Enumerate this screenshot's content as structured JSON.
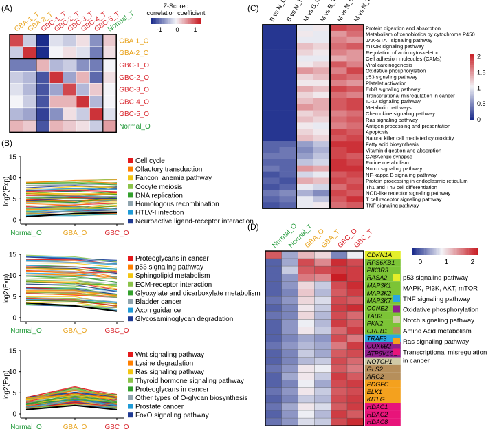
{
  "panels": {
    "A": {
      "label": "(A)",
      "legend_title": [
        "Z-Scored",
        "correlation coefficient"
      ],
      "legend_ticks": [
        "-1",
        "0",
        "1"
      ],
      "columns": [
        "GBA-1_T",
        "GBA-2_T",
        "GBC-1_T",
        "GBC-2_T",
        "GBC-3_T",
        "GBC-4_T",
        "GBC-5_T",
        "Normal_T"
      ],
      "rows": [
        "GBA-1_O",
        "GBA-2_O",
        "GBC-1_O",
        "GBC-2_O",
        "GBC-3_O",
        "GBC-4_O",
        "GBC-5_O",
        "Normal_O"
      ],
      "group_colors": {
        "GBA": "#e8a21a",
        "GBC": "#d9272e",
        "Normal": "#229a3a"
      },
      "matrix": [
        [
          0.8,
          -0.2,
          -1,
          -0.1,
          -0.2,
          0.1,
          -0.5,
          0.2
        ],
        [
          -0.2,
          0.9,
          -1,
          0.0,
          0.1,
          -0.1,
          -0.6,
          0.1
        ],
        [
          -0.6,
          -0.6,
          0.3,
          -0.3,
          -0.2,
          -0.5,
          -0.6,
          0.0
        ],
        [
          -0.2,
          -0.3,
          -0.8,
          0.9,
          -0.4,
          0.3,
          -0.7,
          0.1
        ],
        [
          -0.1,
          -0.3,
          -0.8,
          -0.4,
          0.8,
          -0.3,
          0.2,
          0.0
        ],
        [
          0.0,
          -0.2,
          -0.8,
          0.3,
          0.3,
          0.9,
          -0.3,
          0.0
        ],
        [
          -0.3,
          -0.4,
          -0.9,
          -0.5,
          0.1,
          -0.2,
          0.9,
          -0.1
        ],
        [
          0.3,
          0.2,
          -0.8,
          0.3,
          0.2,
          0.1,
          -0.2,
          0.4
        ]
      ]
    },
    "B": {
      "label": "(B)",
      "xticks": [
        "Normal_O",
        "GBA_O",
        "GBC_O"
      ],
      "xtick_colors": [
        "#229a3a",
        "#e8a21a",
        "#d9272e"
      ],
      "ylabel": "log2(Exp)",
      "subplots": [
        {
          "yticks": [
            "0",
            "5",
            "10",
            "15"
          ],
          "legend": [
            {
              "label": "Cell cycle",
              "color": "#e41a1c"
            },
            {
              "label": "Olfactory transduction",
              "color": "#ff7f00"
            },
            {
              "label": "Fanconi anemia pathway",
              "color": "#f3c613"
            },
            {
              "label": "Oocyte meiosis",
              "color": "#8bc34a"
            },
            {
              "label": "DNA replication",
              "color": "#33a02c"
            },
            {
              "label": "Homologous recombination",
              "color": "#90a4ae"
            },
            {
              "label": "HTLV-I infection",
              "color": "#1f9bd7"
            },
            {
              "label": "Neuroactive ligand-receptor interaction",
              "color": "#1f3a93"
            }
          ]
        },
        {
          "yticks": [
            "0",
            "5",
            "10",
            "15"
          ],
          "legend": [
            {
              "label": "Proteoglycans in cancer",
              "color": "#e41a1c"
            },
            {
              "label": "p53 signaling pathway",
              "color": "#ff7f00"
            },
            {
              "label": "Sphingolipid metabolism",
              "color": "#f3c613"
            },
            {
              "label": "ECM-receptor interaction",
              "color": "#8bc34a"
            },
            {
              "label": "Glyoxylate and dicarboxylate metabolism",
              "color": "#33a02c"
            },
            {
              "label": "Bladder cancer",
              "color": "#90a4ae"
            },
            {
              "label": "Axon guidance",
              "color": "#1f9bd7"
            },
            {
              "label": "Glycosaminoglycan degradation",
              "color": "#1f3a93"
            }
          ]
        },
        {
          "yticks": [
            "0",
            "5",
            "10",
            "15"
          ],
          "legend": [
            {
              "label": "Wnt signaling pathway",
              "color": "#e41a1c"
            },
            {
              "label": "Lysine degradation",
              "color": "#ff7f00"
            },
            {
              "label": "Ras signaling pathway",
              "color": "#f3c613"
            },
            {
              "label": "Thyroid hormone signaling pathway",
              "color": "#8bc34a"
            },
            {
              "label": "Proteoglycans in cancer",
              "color": "#33a02c"
            },
            {
              "label": "Other types of O-glycan biosynthesis",
              "color": "#90a4ae"
            },
            {
              "label": "Prostate cancer",
              "color": "#1f9bd7"
            },
            {
              "label": "FoxO signaling pathway",
              "color": "#1f3a93"
            }
          ]
        }
      ]
    },
    "C": {
      "label": "(C)",
      "columns": [
        "B vs N_O",
        "B vs N_T",
        "M vs B_O",
        "M vs B_T",
        "M vs N_O",
        "M vs N_T"
      ],
      "rows": [
        "Protein digestion and absorption",
        "Metabolism of xenobiotics by cytochrome P450",
        "JAK-STAT signaling pathway",
        "mTOR signaling pathway",
        "Regulation of actin cytoskeleton",
        "Cell adhesion molecules (CAMs)",
        "Viral carcinogenesis",
        "Oxidative phosphorylation",
        "p53 signaling pathway",
        "Platelet activation",
        "ErbB signaling pathway",
        "Transcriptional misregulation in cancer",
        "IL-17 signaling pathway",
        "Metabolic pathways",
        "Chemokine signaling pathway",
        "Ras signaling pathway",
        "Antigen processing and presentation",
        "Apoptosis",
        "Natural killer cell mediated cytotoxicity",
        "Fatty acid biosynthesis",
        "Vitamin digestion and absorption",
        "GABAergic synapse",
        "Purine metabolism",
        "Notch signaling pathway",
        "NF-kappa B signaling pathway",
        "Protein processing in endoplasmic reticulum",
        "Th1 and Th2 cell differentiation",
        "NOD-like receptor signaling pathway",
        "T cell receptor signaling pathway",
        "TNF signaling pathway"
      ],
      "colorbar_ticks": [
        "2",
        "1.5",
        "1",
        "0.5",
        "0"
      ],
      "colorbar_range": [
        0,
        2.1
      ],
      "matrix": [
        [
          0.05,
          0.05,
          1.0,
          1.1,
          1.9,
          1.8
        ],
        [
          0.05,
          0.05,
          1.1,
          1.0,
          1.5,
          1.7
        ],
        [
          0.05,
          0.05,
          1.0,
          1.0,
          1.6,
          1.5
        ],
        [
          0.05,
          0.05,
          1.3,
          1.2,
          1.7,
          1.8
        ],
        [
          0.05,
          0.05,
          1.2,
          1.1,
          1.6,
          1.5
        ],
        [
          0.05,
          0.05,
          1.0,
          1.0,
          1.4,
          1.5
        ],
        [
          0.05,
          0.05,
          1.1,
          1.2,
          1.8,
          1.6
        ],
        [
          0.05,
          0.05,
          1.5,
          1.4,
          1.6,
          1.9
        ],
        [
          0.05,
          0.05,
          1.2,
          1.3,
          1.8,
          1.7
        ],
        [
          0.05,
          0.05,
          1.1,
          1.1,
          1.6,
          1.5
        ],
        [
          0.05,
          0.05,
          1.4,
          1.3,
          1.9,
          1.8
        ],
        [
          0.05,
          0.05,
          1.2,
          1.1,
          1.7,
          1.6
        ],
        [
          0.05,
          0.05,
          1.3,
          1.4,
          1.8,
          1.9
        ],
        [
          0.05,
          0.05,
          1.5,
          1.4,
          1.8,
          1.9
        ],
        [
          0.05,
          0.05,
          1.2,
          1.3,
          1.6,
          1.7
        ],
        [
          0.05,
          0.05,
          1.3,
          1.2,
          1.7,
          1.8
        ],
        [
          0.05,
          0.05,
          1.1,
          1.0,
          1.6,
          1.7
        ],
        [
          0.05,
          0.05,
          1.2,
          1.1,
          1.9,
          1.8
        ],
        [
          0.05,
          0.05,
          1.3,
          1.2,
          1.8,
          1.9
        ],
        [
          0.3,
          0.3,
          0.6,
          0.8,
          2.0,
          2.0
        ],
        [
          0.3,
          0.4,
          0.5,
          0.7,
          1.9,
          2.0
        ],
        [
          0.4,
          0.4,
          0.6,
          0.8,
          1.9,
          1.8
        ],
        [
          0.3,
          0.3,
          0.8,
          0.9,
          2.0,
          1.9
        ],
        [
          0.4,
          0.3,
          1.5,
          1.4,
          2.0,
          2.0
        ],
        [
          0.2,
          0.3,
          0.9,
          1.0,
          1.8,
          1.9
        ],
        [
          0.3,
          0.2,
          1.4,
          1.3,
          1.9,
          1.8
        ],
        [
          0.2,
          0.3,
          1.0,
          0.9,
          1.7,
          1.9
        ],
        [
          0.4,
          0.5,
          0.7,
          0.5,
          1.9,
          1.8
        ],
        [
          0.3,
          0.4,
          1.0,
          0.8,
          1.8,
          2.0
        ],
        [
          0.2,
          0.3,
          1.0,
          1.1,
          1.7,
          1.8
        ]
      ]
    },
    "D": {
      "label": "(D)",
      "columns": [
        "Normal_O",
        "Normal_T",
        "GBA_O",
        "GBA_T",
        "GBC_O",
        "GBC_T"
      ],
      "column_colors": [
        "#229a3a",
        "#229a3a",
        "#e8a21a",
        "#e8a21a",
        "#d9272e",
        "#d9272e"
      ],
      "colorbar_ticks": [
        "0",
        "1",
        "2"
      ],
      "colorbar_range": [
        -0.3,
        2.2
      ],
      "genes": [
        {
          "name": "CDKN1A",
          "group": 0
        },
        {
          "name": "RPS6KB1",
          "group": 1
        },
        {
          "name": "PIK3R3",
          "group": 1
        },
        {
          "name": "RASA2",
          "group": 1
        },
        {
          "name": "MAP3K1",
          "group": 1
        },
        {
          "name": "MAP3K2",
          "group": 1
        },
        {
          "name": "MAP3K7",
          "group": 1
        },
        {
          "name": "CCNE2",
          "group": 1
        },
        {
          "name": "TAB2",
          "group": 1
        },
        {
          "name": "PKN2",
          "group": 1
        },
        {
          "name": "CREB1",
          "group": 1
        },
        {
          "name": "TRAF3",
          "group": 2
        },
        {
          "name": "COX6B2",
          "group": 3
        },
        {
          "name": "ATP6V1C2",
          "group": 3
        },
        {
          "name": "NOTCH1",
          "group": 4
        },
        {
          "name": "GLS2",
          "group": 5
        },
        {
          "name": "ARG2",
          "group": 5
        },
        {
          "name": "PDGFC",
          "group": 6
        },
        {
          "name": "ELK1",
          "group": 6
        },
        {
          "name": "KITLG",
          "group": 6
        },
        {
          "name": "HDAC1",
          "group": 7
        },
        {
          "name": "HDAC2",
          "group": 7
        },
        {
          "name": "HDAC8",
          "group": 7
        }
      ],
      "groups": [
        {
          "label": "p53 signaling pathway",
          "color": "#e4ee2a"
        },
        {
          "label": "MAPK, PI3K, AKT, mTOR",
          "color": "#7cc436"
        },
        {
          "label": "TNF signaling pathway",
          "color": "#2aa7e0"
        },
        {
          "label": "Oxidative phosphorylation",
          "color": "#8f1f8c"
        },
        {
          "label": "Notch signaling pathway",
          "color": "#cfc9a6"
        },
        {
          "label": "Amino Acid metabolism",
          "color": "#b68f5b"
        },
        {
          "label": "Ras signaling pathway",
          "color": "#f4a11e"
        },
        {
          "label": "Transcriptional misregulation",
          "color": "#e8147a"
        }
      ],
      "legend_extra_line": "in cancer",
      "matrix": [
        [
          1.8,
          0.4,
          1.2,
          1.0,
          0.2,
          0.8
        ],
        [
          0.0,
          0.4,
          1.9,
          1.5,
          2.1,
          1.9
        ],
        [
          0.0,
          0.6,
          1.8,
          1.9,
          2.0,
          2.0
        ],
        [
          0.0,
          0.3,
          1.6,
          1.5,
          2.2,
          2.0
        ],
        [
          0.0,
          0.3,
          1.0,
          0.6,
          1.9,
          2.1
        ],
        [
          0.0,
          0.2,
          1.1,
          0.5,
          1.8,
          2.0
        ],
        [
          0.1,
          0.3,
          1.0,
          0.7,
          1.9,
          1.8
        ],
        [
          0.0,
          0.2,
          0.9,
          0.6,
          2.0,
          2.1
        ],
        [
          0.1,
          0.2,
          1.0,
          0.5,
          1.9,
          1.7
        ],
        [
          0.0,
          0.3,
          0.8,
          0.5,
          2.0,
          1.8
        ],
        [
          0.0,
          0.3,
          0.9,
          0.6,
          1.7,
          2.0
        ],
        [
          0.0,
          0.2,
          0.4,
          0.3,
          1.9,
          1.6
        ],
        [
          0.1,
          0.3,
          0.5,
          0.4,
          1.6,
          2.0
        ],
        [
          0.0,
          0.2,
          0.6,
          0.4,
          1.8,
          1.9
        ],
        [
          0.0,
          0.2,
          0.5,
          0.6,
          1.9,
          1.7
        ],
        [
          0.1,
          0.3,
          0.9,
          0.8,
          1.8,
          1.6
        ],
        [
          0.0,
          0.4,
          0.9,
          0.6,
          2.0,
          1.8
        ],
        [
          0.0,
          0.2,
          0.8,
          0.4,
          1.9,
          2.0
        ],
        [
          0.1,
          0.3,
          0.9,
          0.6,
          1.8,
          1.9
        ],
        [
          0.0,
          0.2,
          0.6,
          0.5,
          1.9,
          2.0
        ],
        [
          0.1,
          0.4,
          0.9,
          0.7,
          1.8,
          2.0
        ],
        [
          0.0,
          0.3,
          0.8,
          0.5,
          2.0,
          1.8
        ],
        [
          0.1,
          0.3,
          0.7,
          0.6,
          1.9,
          2.1
        ]
      ]
    }
  }
}
